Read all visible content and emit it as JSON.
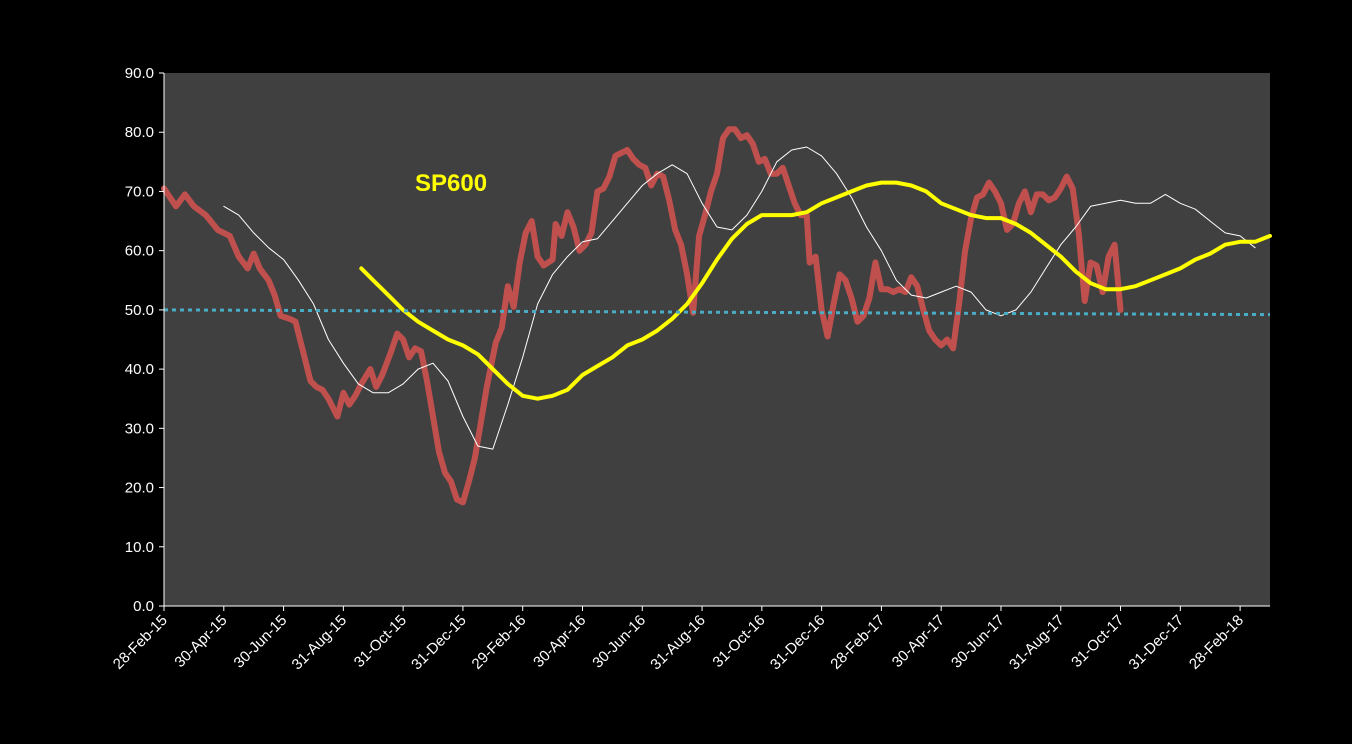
{
  "chart_data": {
    "type": "line",
    "title": "",
    "xlabel": "",
    "ylabel": "",
    "annotation": "SP600",
    "ylim": [
      0,
      90
    ],
    "grid": false,
    "legend": "none",
    "colors": {
      "background": "#000000",
      "plot_area": "#404040",
      "axis": "#ffffff",
      "red": "#c0504d",
      "white": "#ffffff",
      "yellow": "#ffff00",
      "reference": "#4bacc6"
    },
    "yticks": [
      "0.0",
      "10.0",
      "20.0",
      "30.0",
      "40.0",
      "50.0",
      "60.0",
      "70.0",
      "80.0",
      "90.0"
    ],
    "xticks": [
      "28-Feb-15",
      "30-Apr-15",
      "30-Jun-15",
      "31-Aug-15",
      "31-Oct-15",
      "31-Dec-15",
      "29-Feb-16",
      "30-Apr-16",
      "30-Jun-16",
      "31-Aug-16",
      "31-Oct-16",
      "31-Dec-16",
      "28-Feb-17",
      "30-Apr-17",
      "30-Jun-17",
      "31-Aug-17",
      "31-Oct-17",
      "31-Dec-17",
      "28-Feb-18"
    ],
    "x_range": [
      0,
      37
    ],
    "series": [
      {
        "key": "weekly",
        "color": "#c0504d",
        "width": 6,
        "points": [
          [
            0,
            70.5
          ],
          [
            0.4,
            67.5
          ],
          [
            0.7,
            69.5
          ],
          [
            1,
            67.5
          ],
          [
            1.4,
            66
          ],
          [
            1.8,
            63.5
          ],
          [
            2.2,
            62.5
          ],
          [
            2.5,
            59
          ],
          [
            2.8,
            57
          ],
          [
            3,
            59.5
          ],
          [
            3.2,
            57
          ],
          [
            3.5,
            55
          ],
          [
            3.7,
            52.5
          ],
          [
            3.9,
            49
          ],
          [
            4.2,
            48.5
          ],
          [
            4.4,
            48
          ],
          [
            4.6,
            44
          ],
          [
            4.9,
            38
          ],
          [
            5.1,
            37
          ],
          [
            5.3,
            36.5
          ],
          [
            5.5,
            35
          ],
          [
            5.8,
            32
          ],
          [
            6,
            36
          ],
          [
            6.2,
            34
          ],
          [
            6.4,
            35.5
          ],
          [
            6.6,
            37.5
          ],
          [
            6.9,
            40
          ],
          [
            7.1,
            37
          ],
          [
            7.3,
            39
          ],
          [
            7.6,
            43
          ],
          [
            7.8,
            46
          ],
          [
            8,
            45
          ],
          [
            8.2,
            42
          ],
          [
            8.4,
            43.5
          ],
          [
            8.6,
            43
          ],
          [
            8.8,
            38
          ],
          [
            9,
            32
          ],
          [
            9.2,
            26
          ],
          [
            9.4,
            22.5
          ],
          [
            9.6,
            21
          ],
          [
            9.8,
            18
          ],
          [
            10,
            17.5
          ],
          [
            10.2,
            21
          ],
          [
            10.4,
            25
          ],
          [
            10.6,
            31
          ],
          [
            10.8,
            37
          ],
          [
            11.1,
            44.5
          ],
          [
            11.3,
            47
          ],
          [
            11.5,
            54
          ],
          [
            11.7,
            50.5
          ],
          [
            11.9,
            58
          ],
          [
            12.1,
            63
          ],
          [
            12.3,
            65
          ],
          [
            12.5,
            59
          ],
          [
            12.7,
            57.5
          ],
          [
            13,
            58.5
          ],
          [
            13.1,
            64.5
          ],
          [
            13.3,
            62.5
          ],
          [
            13.5,
            66.5
          ],
          [
            13.7,
            64
          ],
          [
            13.9,
            60
          ],
          [
            14.1,
            61
          ],
          [
            14.3,
            63
          ],
          [
            14.5,
            70
          ],
          [
            14.7,
            70.5
          ],
          [
            14.9,
            72.5
          ],
          [
            15.1,
            76
          ],
          [
            15.3,
            76.5
          ],
          [
            15.5,
            77
          ],
          [
            15.7,
            75.5
          ],
          [
            15.9,
            74.5
          ],
          [
            16.1,
            74
          ],
          [
            16.3,
            71
          ],
          [
            16.5,
            73
          ],
          [
            16.7,
            72.5
          ],
          [
            16.9,
            68.5
          ],
          [
            17.1,
            63.5
          ],
          [
            17.3,
            61
          ],
          [
            17.5,
            56
          ],
          [
            17.7,
            49.5
          ],
          [
            17.9,
            62.5
          ],
          [
            18.1,
            66
          ],
          [
            18.3,
            70
          ],
          [
            18.5,
            73
          ],
          [
            18.7,
            79
          ],
          [
            18.9,
            80.5
          ],
          [
            19.1,
            80.5
          ],
          [
            19.3,
            79
          ],
          [
            19.5,
            79.5
          ],
          [
            19.7,
            78
          ],
          [
            19.9,
            75
          ],
          [
            20.1,
            75.5
          ],
          [
            20.3,
            73
          ],
          [
            20.5,
            73
          ],
          [
            20.7,
            74
          ],
          [
            20.9,
            71
          ],
          [
            21.1,
            68
          ],
          [
            21.3,
            66
          ],
          [
            21.5,
            66
          ],
          [
            21.6,
            58
          ],
          [
            21.8,
            59
          ],
          [
            22,
            50
          ],
          [
            22.2,
            45.5
          ],
          [
            22.4,
            51
          ],
          [
            22.6,
            56
          ],
          [
            22.8,
            55
          ],
          [
            23,
            52
          ],
          [
            23.2,
            48
          ],
          [
            23.4,
            49
          ],
          [
            23.6,
            52
          ],
          [
            23.8,
            58
          ],
          [
            24,
            53.5
          ],
          [
            24.2,
            53.5
          ],
          [
            24.4,
            53
          ],
          [
            24.6,
            53.5
          ],
          [
            24.8,
            53
          ],
          [
            25,
            55.5
          ],
          [
            25.2,
            54
          ],
          [
            25.4,
            50
          ],
          [
            25.6,
            46.5
          ],
          [
            25.8,
            45
          ],
          [
            26,
            44
          ],
          [
            26.2,
            45
          ],
          [
            26.4,
            43.5
          ],
          [
            26.6,
            51
          ],
          [
            26.8,
            60
          ],
          [
            27,
            65.5
          ],
          [
            27.2,
            69
          ],
          [
            27.4,
            69.5
          ],
          [
            27.6,
            71.5
          ],
          [
            27.8,
            70
          ],
          [
            28,
            68
          ],
          [
            28.2,
            63.5
          ],
          [
            28.4,
            64.5
          ],
          [
            28.6,
            68
          ],
          [
            28.8,
            70
          ],
          [
            29,
            66.5
          ],
          [
            29.2,
            69.5
          ],
          [
            29.4,
            69.5
          ],
          [
            29.6,
            68.5
          ],
          [
            29.8,
            69
          ],
          [
            30,
            70.5
          ],
          [
            30.2,
            72.5
          ],
          [
            30.4,
            70.5
          ],
          [
            30.6,
            63
          ],
          [
            30.8,
            51.5
          ],
          [
            31,
            58
          ],
          [
            31.2,
            57.5
          ],
          [
            31.4,
            53
          ],
          [
            31.6,
            59
          ],
          [
            31.8,
            61
          ],
          [
            32,
            50
          ]
        ]
      },
      {
        "key": "white",
        "color": "#ffffff",
        "width": 1,
        "points": [
          [
            2,
            67.5
          ],
          [
            2.5,
            66
          ],
          [
            3,
            63
          ],
          [
            3.5,
            60.5
          ],
          [
            4,
            58.5
          ],
          [
            4.5,
            55
          ],
          [
            5,
            51
          ],
          [
            5.5,
            45
          ],
          [
            6,
            41
          ],
          [
            6.5,
            37.5
          ],
          [
            7,
            36
          ],
          [
            7.5,
            36
          ],
          [
            8,
            37.5
          ],
          [
            8.5,
            40
          ],
          [
            9,
            41
          ],
          [
            9.5,
            38
          ],
          [
            10,
            32
          ],
          [
            10.5,
            27
          ],
          [
            11,
            26.5
          ],
          [
            11.5,
            34
          ],
          [
            12,
            42
          ],
          [
            12.5,
            51
          ],
          [
            13,
            56
          ],
          [
            13.5,
            59
          ],
          [
            14,
            61.5
          ],
          [
            14.5,
            62
          ],
          [
            15,
            65
          ],
          [
            15.5,
            68
          ],
          [
            16,
            71
          ],
          [
            16.5,
            73
          ],
          [
            17,
            74.5
          ],
          [
            17.5,
            73
          ],
          [
            18,
            68
          ],
          [
            18.5,
            64
          ],
          [
            19,
            63.5
          ],
          [
            19.5,
            66
          ],
          [
            20,
            70
          ],
          [
            20.5,
            75
          ],
          [
            21,
            77
          ],
          [
            21.5,
            77.5
          ],
          [
            22,
            76
          ],
          [
            22.5,
            73
          ],
          [
            23,
            69
          ],
          [
            23.5,
            64
          ],
          [
            24,
            60
          ],
          [
            24.5,
            55
          ],
          [
            25,
            52.5
          ],
          [
            25.5,
            52
          ],
          [
            26,
            53
          ],
          [
            26.5,
            54
          ],
          [
            27,
            53
          ],
          [
            27.5,
            50
          ],
          [
            28,
            49
          ],
          [
            28.5,
            50
          ],
          [
            29,
            53
          ],
          [
            29.5,
            57
          ],
          [
            30,
            61
          ],
          [
            30.5,
            64
          ],
          [
            31,
            67.5
          ],
          [
            31.5,
            68
          ],
          [
            32,
            68.5
          ],
          [
            32.5,
            68
          ],
          [
            33,
            68
          ],
          [
            33.5,
            69.5
          ],
          [
            34,
            68
          ],
          [
            34.5,
            67
          ],
          [
            35,
            65
          ],
          [
            35.5,
            63
          ],
          [
            36,
            62.5
          ],
          [
            36.5,
            60.5
          ]
        ]
      },
      {
        "key": "yellow",
        "color": "#ffff00",
        "width": 4,
        "points": [
          [
            6.6,
            57
          ],
          [
            7,
            55
          ],
          [
            7.5,
            52.5
          ],
          [
            8,
            50
          ],
          [
            8.5,
            48
          ],
          [
            9,
            46.5
          ],
          [
            9.5,
            45
          ],
          [
            10,
            44
          ],
          [
            10.5,
            42.5
          ],
          [
            11,
            40
          ],
          [
            11.5,
            37.5
          ],
          [
            12,
            35.5
          ],
          [
            12.5,
            35
          ],
          [
            13,
            35.5
          ],
          [
            13.5,
            36.5
          ],
          [
            14,
            39
          ],
          [
            14.5,
            40.5
          ],
          [
            15,
            42
          ],
          [
            15.5,
            44
          ],
          [
            16,
            45
          ],
          [
            16.5,
            46.5
          ],
          [
            17,
            48.5
          ],
          [
            17.5,
            51
          ],
          [
            18,
            54.5
          ],
          [
            18.5,
            58.5
          ],
          [
            19,
            62
          ],
          [
            19.5,
            64.5
          ],
          [
            20,
            66
          ],
          [
            20.5,
            66
          ],
          [
            21,
            66
          ],
          [
            21.5,
            66.5
          ],
          [
            22,
            68
          ],
          [
            22.5,
            69
          ],
          [
            23,
            70
          ],
          [
            23.5,
            71
          ],
          [
            24,
            71.5
          ],
          [
            24.5,
            71.5
          ],
          [
            25,
            71
          ],
          [
            25.5,
            70
          ],
          [
            26,
            68
          ],
          [
            26.5,
            67
          ],
          [
            27,
            66
          ],
          [
            27.5,
            65.5
          ],
          [
            28,
            65.5
          ],
          [
            28.5,
            64.5
          ],
          [
            29,
            63
          ],
          [
            29.5,
            61
          ],
          [
            30,
            59
          ],
          [
            30.5,
            56.5
          ],
          [
            31,
            54.5
          ],
          [
            31.5,
            53.5
          ],
          [
            32,
            53.5
          ],
          [
            32.5,
            54
          ],
          [
            33,
            55
          ],
          [
            33.5,
            56
          ],
          [
            34,
            57
          ],
          [
            34.5,
            58.5
          ],
          [
            35,
            59.5
          ],
          [
            35.5,
            61
          ],
          [
            36,
            61.5
          ],
          [
            36.5,
            61.5
          ],
          [
            37,
            62.5
          ]
        ]
      },
      {
        "key": "reference",
        "color": "#4bacc6",
        "width": 3,
        "dashed": true,
        "points": [
          [
            0,
            50
          ],
          [
            37,
            49.2
          ]
        ]
      }
    ]
  }
}
